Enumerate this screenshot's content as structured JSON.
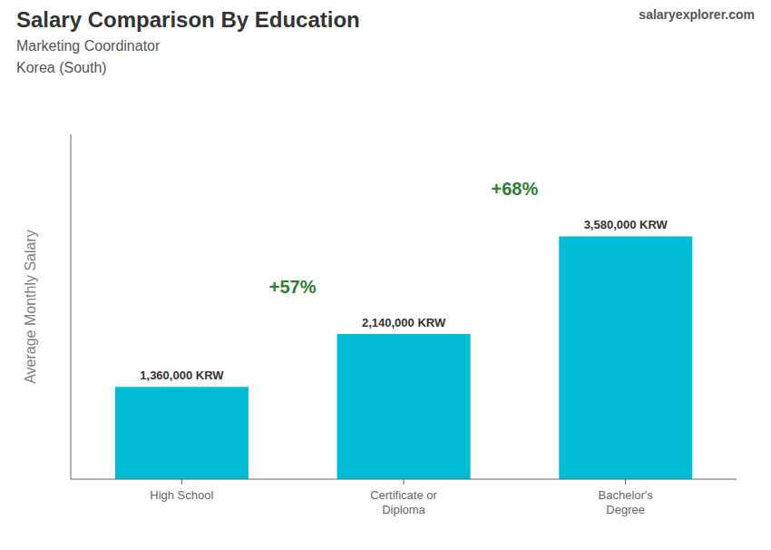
{
  "chart_data": {
    "type": "bar",
    "title": "Salary Comparison By Education",
    "subtitle": [
      "Marketing Coordinator",
      "Korea (South)"
    ],
    "y_label": "Average Monthly Salary",
    "categories": [
      "High School",
      "Certificate or\nDiploma",
      "Bachelor's\nDegree"
    ],
    "values": [
      1360000,
      2140000,
      3580000
    ],
    "value_labels": [
      "1,360,000 KRW",
      "2,140,000 KRW",
      "3,580,000 KRW"
    ],
    "data_labels": true,
    "annotations": [
      "+57%",
      "+68%",
      "salaryexplorer.com"
    ],
    "color": "#00bcd4",
    "ylim": [
      0,
      5083600
    ],
    "tick_labels": "x",
    "grid": false
  }
}
